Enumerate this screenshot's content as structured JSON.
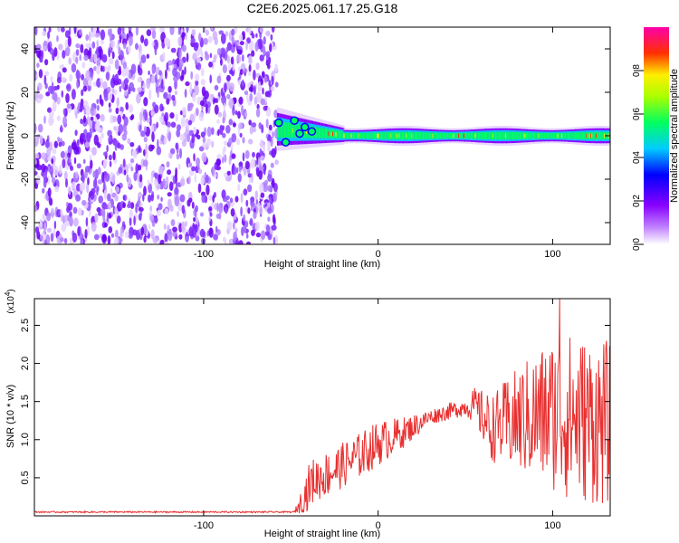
{
  "title": "C2E6.2025.061.17.25.G18",
  "chart_data": [
    {
      "type": "heatmap",
      "title": "C2E6.2025.061.17.25.G18",
      "xlabel": "Height of straight line (km)",
      "ylabel": "Frequency (Hz)",
      "xlim": [
        -197,
        133
      ],
      "ylim": [
        -50,
        50
      ],
      "x_ticks": [
        -100,
        0,
        100
      ],
      "y_ticks": [
        -40,
        -20,
        0,
        20,
        40
      ],
      "colorbar": {
        "label": "Normalized spectral amplitude",
        "ticks": [
          "0.0",
          "0.2",
          "0.4",
          "0.6",
          "0.8"
        ],
        "range": [
          0,
          1
        ],
        "colormap": [
          "#ffffff",
          "#8800ff",
          "#0000ff",
          "#00ffff",
          "#00ff00",
          "#ffff00",
          "#ff0000",
          "#ff00ff"
        ]
      },
      "regions": [
        {
          "x_range": [
            -197,
            -58
          ],
          "description_value": 0.15,
          "freq_range": [
            -50,
            50
          ]
        },
        {
          "x_range": [
            -58,
            -20
          ],
          "peak_freq": 3,
          "peak_value": 0.6
        },
        {
          "x_range": [
            -20,
            133
          ],
          "peak_freq": 0,
          "peak_value": 0.55
        }
      ]
    },
    {
      "type": "line",
      "xlabel": "Height of straight line (km)",
      "ylabel": "SNR (10 * v/v)",
      "y_multiplier": "(x10^4)",
      "xlim": [
        -197,
        133
      ],
      "ylim": [
        0,
        2.85
      ],
      "x_ticks": [
        -100,
        0,
        100
      ],
      "y_ticks": [
        0.5,
        1.0,
        1.5,
        2.0,
        2.5
      ],
      "series_color": "#e83030",
      "envelope": [
        {
          "x": -197,
          "y": 0.05
        },
        {
          "x": -48,
          "y": 0.05
        },
        {
          "x": -45,
          "y": 0.15
        },
        {
          "x": -38,
          "y": 0.45
        },
        {
          "x": -25,
          "y": 0.6
        },
        {
          "x": -10,
          "y": 0.8
        },
        {
          "x": 0,
          "y": 0.95
        },
        {
          "x": 15,
          "y": 1.1
        },
        {
          "x": 30,
          "y": 1.3
        },
        {
          "x": 45,
          "y": 1.4
        },
        {
          "x": 55,
          "y": 1.45
        },
        {
          "x": 65,
          "y": 1.15
        },
        {
          "x": 80,
          "y": 1.25
        },
        {
          "x": 100,
          "y": 1.35
        },
        {
          "x": 133,
          "y": 1.2
        }
      ],
      "noise_amplitude": [
        {
          "x": -197,
          "a": 0.01
        },
        {
          "x": -48,
          "a": 0.01
        },
        {
          "x": -40,
          "a": 0.3
        },
        {
          "x": 0,
          "a": 0.3
        },
        {
          "x": 30,
          "a": 0.1
        },
        {
          "x": 50,
          "a": 0.12
        },
        {
          "x": 60,
          "a": 0.35
        },
        {
          "x": 80,
          "a": 0.7
        },
        {
          "x": 105,
          "a": 1.1
        },
        {
          "x": 133,
          "a": 1.1
        }
      ],
      "peak": {
        "x": 104,
        "y": 2.85
      }
    }
  ]
}
